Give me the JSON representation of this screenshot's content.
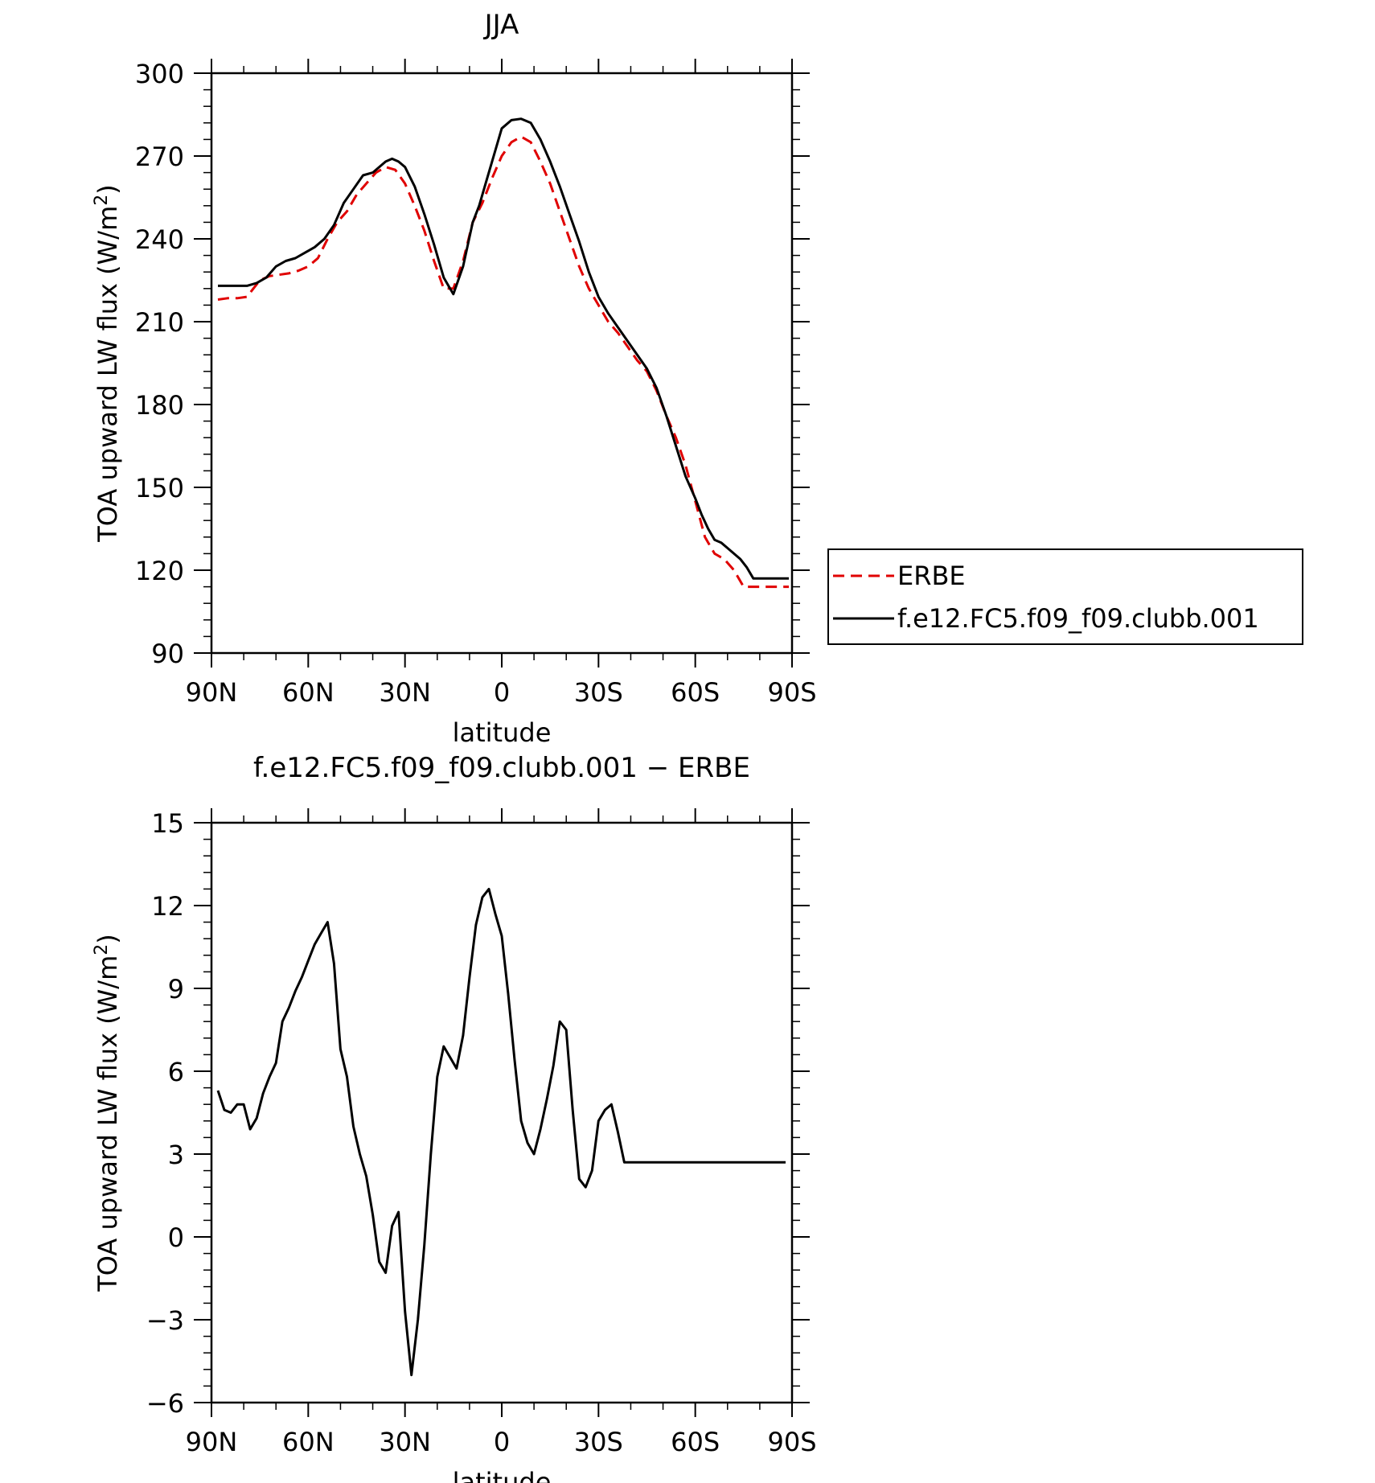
{
  "chart_data": [
    {
      "type": "line",
      "title": "JJA",
      "xlabel": "latitude",
      "ylabel": "TOA upward LW flux (W/m",
      "ylabel_sup": "2",
      "ylabel_close": ")",
      "xlim": [
        90,
        -90
      ],
      "ylim": [
        90,
        300
      ],
      "xticks": [
        {
          "value": 90,
          "label": "90N"
        },
        {
          "value": 60,
          "label": "60N"
        },
        {
          "value": 30,
          "label": "30N"
        },
        {
          "value": 0,
          "label": "0"
        },
        {
          "value": -30,
          "label": "30S"
        },
        {
          "value": -60,
          "label": "60S"
        },
        {
          "value": -90,
          "label": "90S"
        }
      ],
      "yticks": [
        90,
        120,
        150,
        180,
        210,
        240,
        270,
        300
      ],
      "legend_position": "right",
      "series": [
        {
          "name": "ERBE",
          "color": "#e00000",
          "style": "dashed",
          "x": [
            88,
            85,
            82,
            79,
            77,
            75,
            72,
            69,
            66,
            63,
            60,
            57,
            54,
            51,
            48,
            45,
            42,
            39,
            36,
            33,
            30,
            27,
            24,
            21,
            18,
            15,
            12,
            9,
            6,
            3,
            0,
            -3,
            -6,
            -9,
            -12,
            -15,
            -18,
            -21,
            -24,
            -27,
            -30,
            -33,
            -36,
            -39,
            -42,
            -45,
            -48,
            -51,
            -54,
            -57,
            -60,
            -63,
            -66,
            -69,
            -72,
            -75,
            -78,
            -81,
            -84,
            -87,
            -89
          ],
          "y": [
            218,
            218.5,
            218.5,
            219,
            222,
            225,
            226.5,
            227,
            227.5,
            228.5,
            230,
            233,
            240,
            246,
            250,
            256,
            260,
            264,
            266,
            265,
            260,
            252,
            243,
            232,
            222,
            222,
            232,
            246,
            253,
            262,
            270,
            275,
            277,
            275,
            268,
            260,
            250,
            240,
            230,
            222,
            216,
            210,
            206,
            201,
            196,
            192,
            185,
            176,
            168,
            158,
            145,
            132,
            126,
            124,
            120,
            114,
            114,
            114,
            114,
            114,
            114
          ]
        },
        {
          "name": "f.e12.FC5.f09_f09.clubb.001",
          "color": "#000000",
          "style": "solid",
          "x": [
            88,
            85,
            82,
            79,
            76,
            73,
            70,
            67,
            64,
            61,
            58,
            55,
            52,
            49,
            46,
            43,
            40,
            38,
            36,
            34,
            32,
            30,
            27,
            24,
            21,
            18,
            15,
            12,
            9,
            7,
            5,
            2,
            0,
            -3,
            -6,
            -9,
            -12,
            -15,
            -18,
            -21,
            -24,
            -27,
            -30,
            -33,
            -36,
            -39,
            -42,
            -45,
            -48,
            -51,
            -54,
            -57,
            -60,
            -62,
            -64,
            -66,
            -68,
            -70,
            -72,
            -74,
            -76,
            -78,
            -80,
            -82,
            -85,
            -87,
            -89
          ],
          "y": [
            223,
            223,
            223,
            223,
            224,
            226,
            230,
            232,
            233,
            235,
            237,
            240,
            245,
            253,
            258,
            263,
            264,
            266,
            268,
            269,
            268,
            266,
            259,
            249,
            238,
            226,
            220,
            230,
            246,
            252,
            260,
            272,
            280,
            283,
            283.5,
            282,
            276,
            268,
            259,
            249,
            239,
            228,
            219,
            213,
            208,
            203,
            198,
            193,
            186,
            176,
            165,
            154,
            146,
            140,
            135,
            131,
            130,
            128,
            126,
            124,
            121,
            117,
            117,
            117,
            117,
            117,
            117
          ]
        }
      ]
    },
    {
      "type": "line",
      "title": "f.e12.FC5.f09_f09.clubb.001 − ERBE",
      "xlabel": "latitude",
      "ylabel": "TOA upward LW flux (W/m",
      "ylabel_sup": "2",
      "ylabel_close": ")",
      "xlim": [
        90,
        -90
      ],
      "ylim": [
        -6,
        15
      ],
      "xticks": [
        {
          "value": 90,
          "label": "90N"
        },
        {
          "value": 60,
          "label": "60N"
        },
        {
          "value": 30,
          "label": "30N"
        },
        {
          "value": 0,
          "label": "0"
        },
        {
          "value": -30,
          "label": "30S"
        },
        {
          "value": -60,
          "label": "60S"
        },
        {
          "value": -90,
          "label": "90S"
        }
      ],
      "yticks": [
        -6,
        -3,
        0,
        3,
        6,
        9,
        12,
        15
      ],
      "series": [
        {
          "name": "",
          "color": "#000000",
          "style": "solid",
          "x": [
            88,
            86,
            84,
            82,
            80,
            78,
            76,
            74,
            72,
            70,
            68,
            66,
            64,
            62,
            60,
            58,
            56,
            54,
            52,
            50,
            48,
            46,
            44,
            42,
            40,
            38,
            36,
            34,
            32,
            30,
            28,
            26,
            24,
            22,
            20,
            18,
            16,
            14,
            12,
            10,
            8,
            6,
            4,
            2,
            0,
            -2,
            -4,
            -6,
            -8,
            -10,
            -12,
            -14,
            -16,
            -18,
            -20,
            -22,
            -24,
            -26,
            -28,
            -30,
            -32,
            -34,
            -36,
            -38,
            -40,
            -42,
            -44,
            -46,
            -48,
            -50,
            -52,
            -54,
            -56,
            -58,
            -60,
            -62,
            -64,
            -66,
            -68,
            -70,
            -72,
            -74,
            -76,
            -78,
            -80,
            -82,
            -84,
            -86,
            -88
          ],
          "y": [
            5.3,
            4.6,
            4.5,
            4.8,
            4.8,
            3.9,
            4.3,
            5.2,
            5.8,
            6.3,
            7.8,
            8.3,
            8.9,
            9.4,
            10.0,
            10.6,
            11.0,
            11.4,
            9.9,
            6.8,
            5.8,
            4.0,
            3.0,
            2.2,
            0.8,
            -0.9,
            -1.3,
            0.4,
            0.9,
            -2.7,
            -5.0,
            -3.0,
            -0.3,
            3.0,
            5.8,
            6.9,
            6.5,
            6.1,
            7.3,
            9.4,
            11.3,
            12.3,
            12.6,
            11.7,
            10.9,
            8.8,
            6.4,
            4.2,
            3.4,
            3.0,
            3.9,
            5.0,
            6.2,
            7.8,
            7.5,
            4.6,
            2.1,
            1.8,
            2.4,
            4.2,
            4.6,
            4.8,
            3.8,
            2.7,
            2.7,
            2.7,
            2.7,
            2.7,
            2.7,
            2.7,
            2.7,
            2.7,
            2.7,
            2.7,
            2.7,
            2.7,
            2.7,
            2.7,
            2.7,
            2.7,
            2.7,
            2.7,
            2.7,
            2.7,
            2.7,
            2.7,
            2.7,
            2.7,
            2.7
          ]
        }
      ]
    }
  ]
}
